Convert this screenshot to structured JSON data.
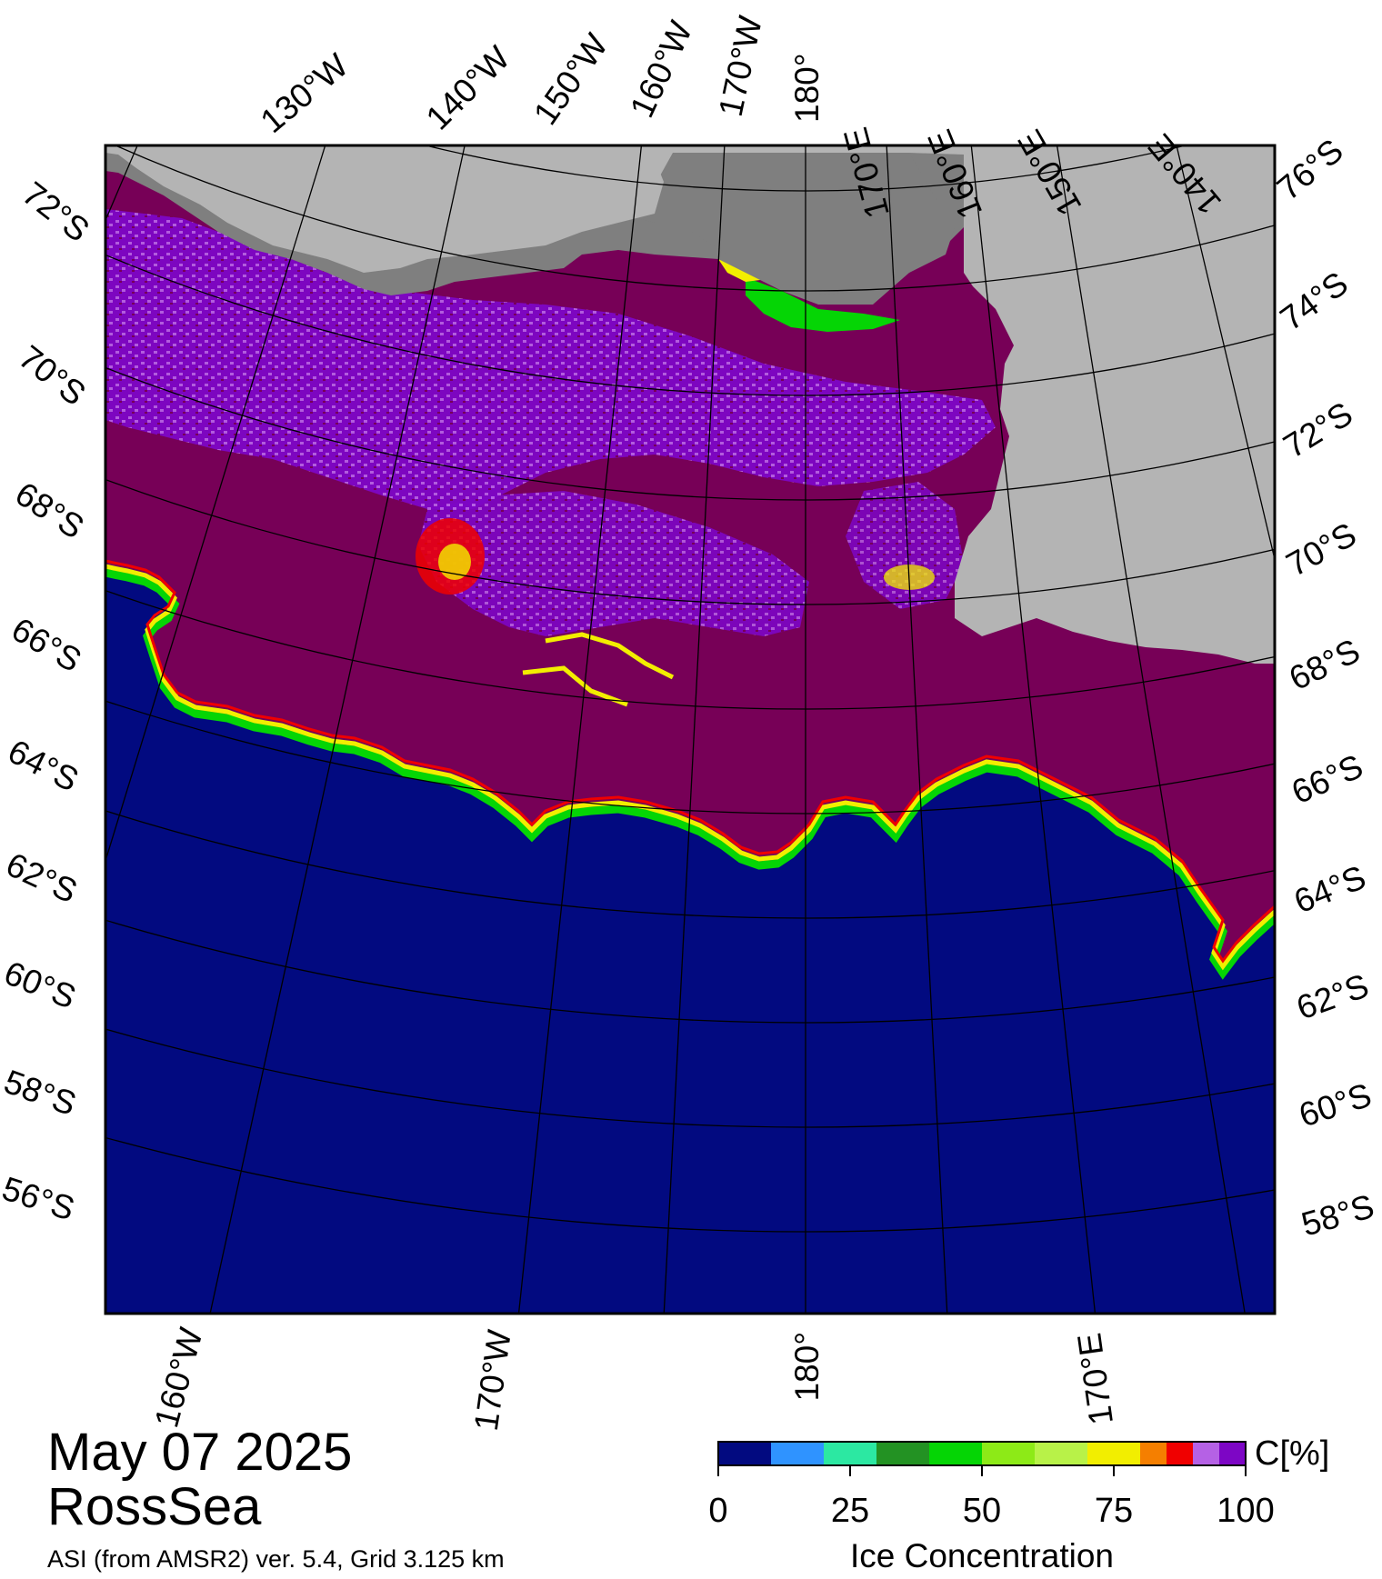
{
  "map": {
    "date": "May 07 2025",
    "region": "RossSea",
    "product": "ASI (from AMSR2) ver. 5.4,  Grid 3.125 km",
    "top_longitude_labels": [
      "130°W",
      "140°W",
      "150°W",
      "160°W",
      "170°W",
      "180°",
      "170°E",
      "160°E",
      "150°E",
      "140°E"
    ],
    "bottom_longitude_labels": [
      "160°W",
      "170°W",
      "180°",
      "170°E"
    ],
    "left_latitude_labels": [
      "72°S",
      "70°S",
      "68°S",
      "66°S",
      "64°S",
      "62°S",
      "60°S",
      "58°S",
      "56°S"
    ],
    "right_latitude_labels": [
      "76°S",
      "74°S",
      "72°S",
      "70°S",
      "68°S",
      "66°S",
      "64°S",
      "62°S",
      "60°S",
      "58°S"
    ],
    "colors": {
      "open_water": "#020a80",
      "high_concentration": "#770057",
      "land": "#b4b4b4",
      "ice_shelf": "#7f7f7f",
      "frame": "#000000"
    }
  },
  "colorbar": {
    "title": "Ice Concentration",
    "unit": "C[%]",
    "ticks": [
      "0",
      "25",
      "50",
      "75",
      "100"
    ],
    "colors": [
      "#020a80",
      "#2f93ff",
      "#2ce8a2",
      "#239223",
      "#05d505",
      "#8dea17",
      "#b8f248",
      "#f2ee00",
      "#f57f00",
      "#f00000",
      "#b561e5",
      "#7d06c5"
    ]
  }
}
